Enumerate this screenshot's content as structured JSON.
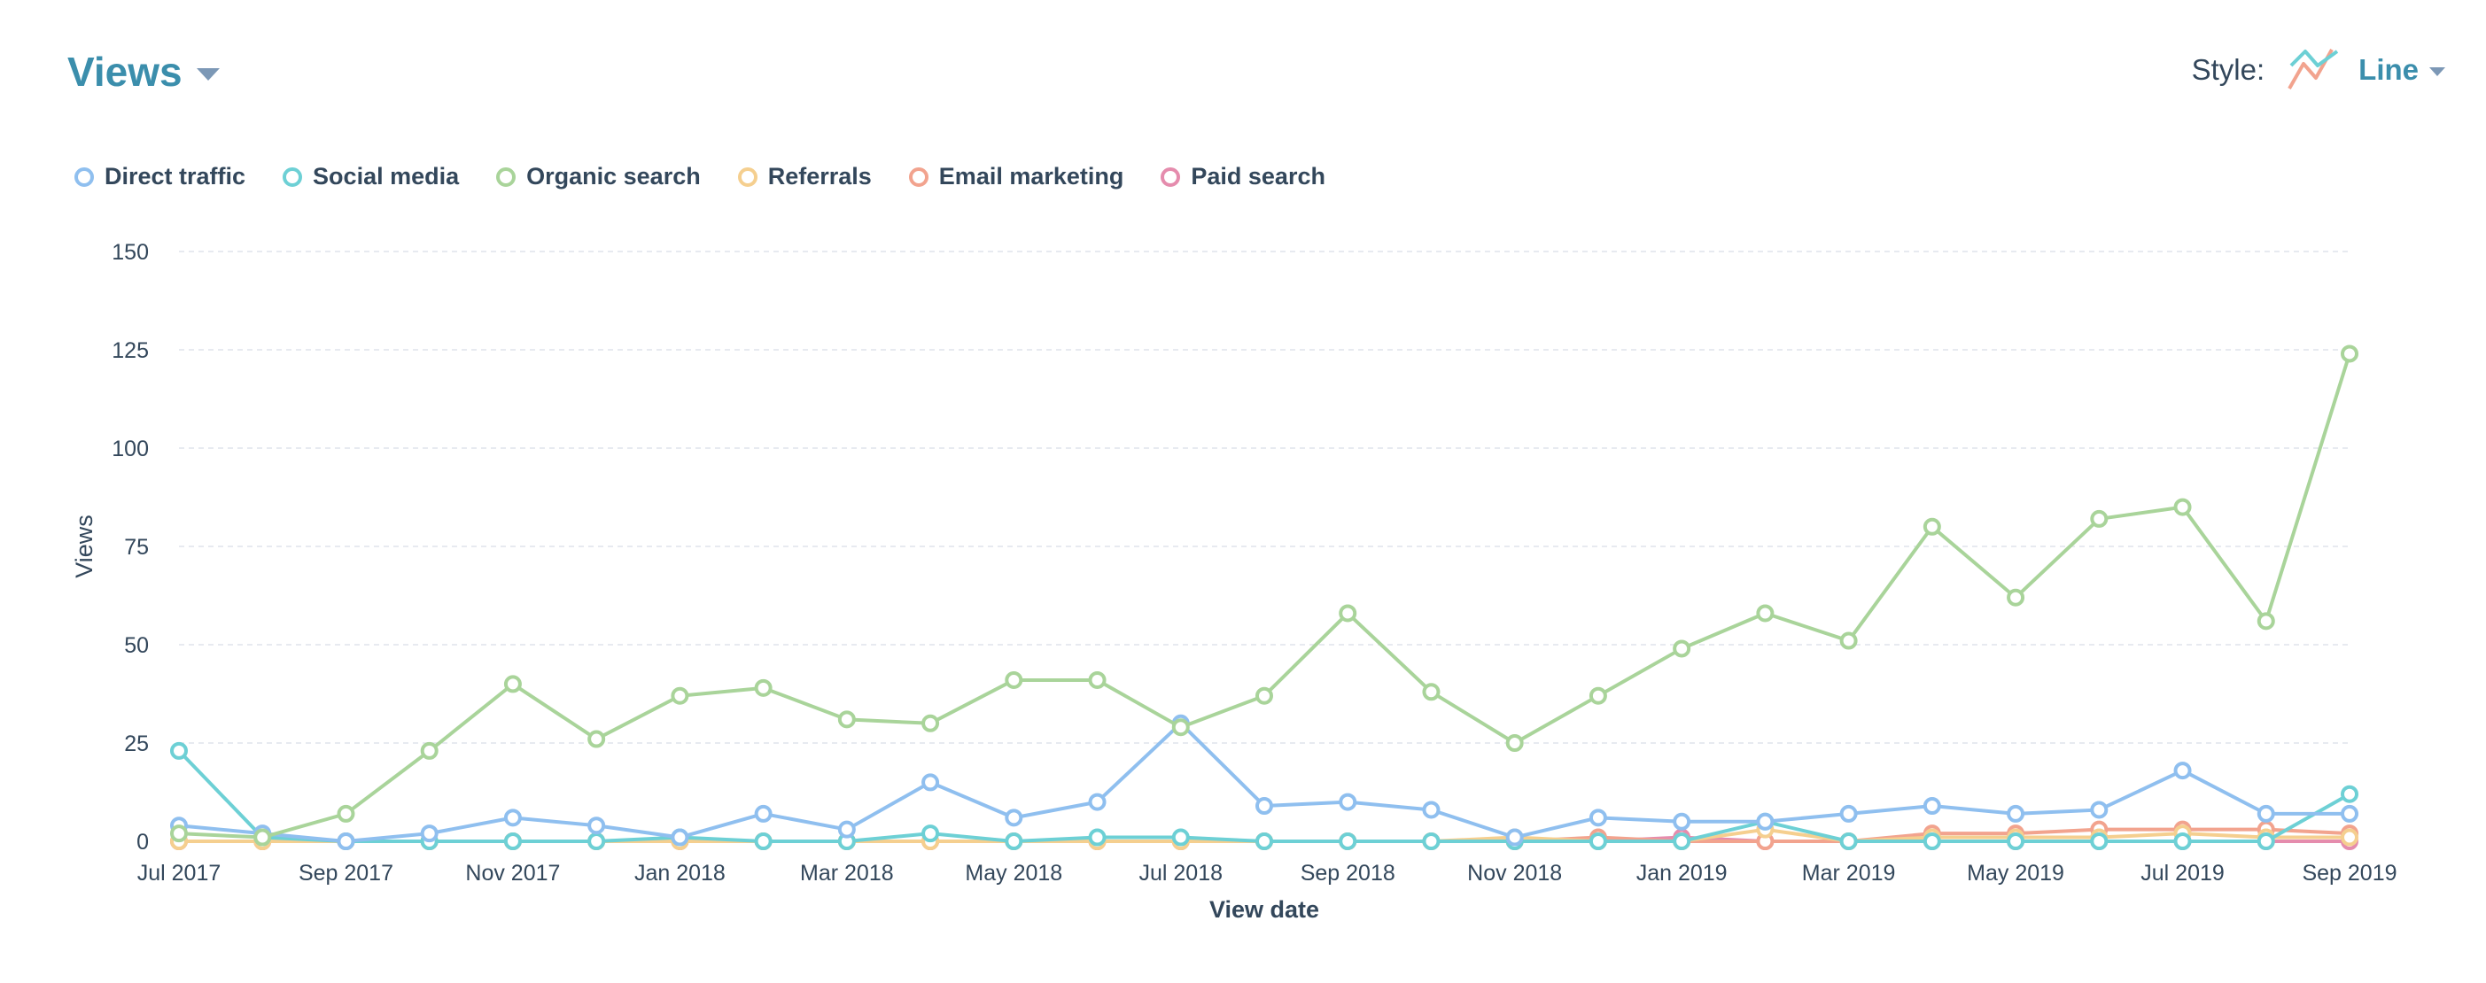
{
  "header": {
    "title": "Views",
    "style_label": "Style:",
    "style_value": "Line"
  },
  "icons": {
    "title_menu": "chevron-down-icon",
    "style_icon": "line-chart-icon",
    "style_menu": "chevron-down-icon"
  },
  "chart_data": {
    "type": "line",
    "title": "Views",
    "xlabel": "View date",
    "ylabel": "Views",
    "ylim": [
      0,
      150
    ],
    "yticks": [
      "0",
      "25",
      "50",
      "75",
      "100",
      "125",
      "150"
    ],
    "grid": true,
    "legend": "top-left",
    "x": [
      "Jul 2017",
      "Aug 2017",
      "Sep 2017",
      "Oct 2017",
      "Nov 2017",
      "Dec 2017",
      "Jan 2018",
      "Feb 2018",
      "Mar 2018",
      "Apr 2018",
      "May 2018",
      "Jun 2018",
      "Jul 2018",
      "Aug 2018",
      "Sep 2018",
      "Oct 2018",
      "Nov 2018",
      "Dec 2018",
      "Jan 2019",
      "Feb 2019",
      "Mar 2019",
      "Apr 2019",
      "May 2019",
      "Jun 2019",
      "Jul 2019",
      "Aug 2019",
      "Sep 2019"
    ],
    "xtick_labels": [
      "Jul 2017",
      "Sep 2017",
      "Nov 2017",
      "Jan 2018",
      "Mar 2018",
      "May 2018",
      "Jul 2018",
      "Sep 2018",
      "Nov 2018",
      "Jan 2019",
      "Mar 2019",
      "May 2019",
      "Jul 2019",
      "Sep 2019"
    ],
    "series": [
      {
        "name": "Direct traffic",
        "color": "#8fbfef",
        "values": [
          4,
          2,
          0,
          2,
          6,
          4,
          1,
          7,
          3,
          15,
          6,
          10,
          30,
          9,
          10,
          8,
          1,
          6,
          5,
          5,
          7,
          9,
          7,
          8,
          18,
          7,
          7
        ]
      },
      {
        "name": "Social media",
        "color": "#6dd0d5",
        "values": [
          23,
          1,
          0,
          0,
          0,
          0,
          1,
          0,
          0,
          2,
          0,
          1,
          1,
          0,
          0,
          0,
          0,
          0,
          0,
          5,
          0,
          0,
          0,
          0,
          0,
          0,
          12
        ]
      },
      {
        "name": "Organic search",
        "color": "#a9d49a",
        "values": [
          2,
          1,
          7,
          23,
          40,
          26,
          37,
          39,
          31,
          30,
          41,
          41,
          29,
          37,
          58,
          38,
          25,
          37,
          49,
          58,
          51,
          80,
          62,
          82,
          85,
          56,
          124
        ]
      },
      {
        "name": "Referrals",
        "color": "#f5cf8f",
        "values": [
          0,
          0,
          0,
          0,
          0,
          0,
          0,
          0,
          0,
          0,
          0,
          0,
          0,
          0,
          0,
          0,
          1,
          0,
          0,
          3,
          0,
          1,
          1,
          1,
          2,
          1,
          1
        ]
      },
      {
        "name": "Email marketing",
        "color": "#f2a38e",
        "values": [
          0,
          0,
          0,
          0,
          0,
          0,
          0,
          0,
          0,
          0,
          0,
          0,
          0,
          0,
          0,
          0,
          0,
          1,
          0,
          0,
          0,
          2,
          2,
          3,
          3,
          3,
          2
        ]
      },
      {
        "name": "Paid search",
        "color": "#e58cad",
        "values": [
          0,
          0,
          0,
          0,
          0,
          0,
          0,
          0,
          0,
          0,
          0,
          0,
          0,
          0,
          0,
          0,
          0,
          0,
          1,
          0,
          0,
          0,
          0,
          0,
          0,
          0,
          0
        ]
      }
    ]
  }
}
